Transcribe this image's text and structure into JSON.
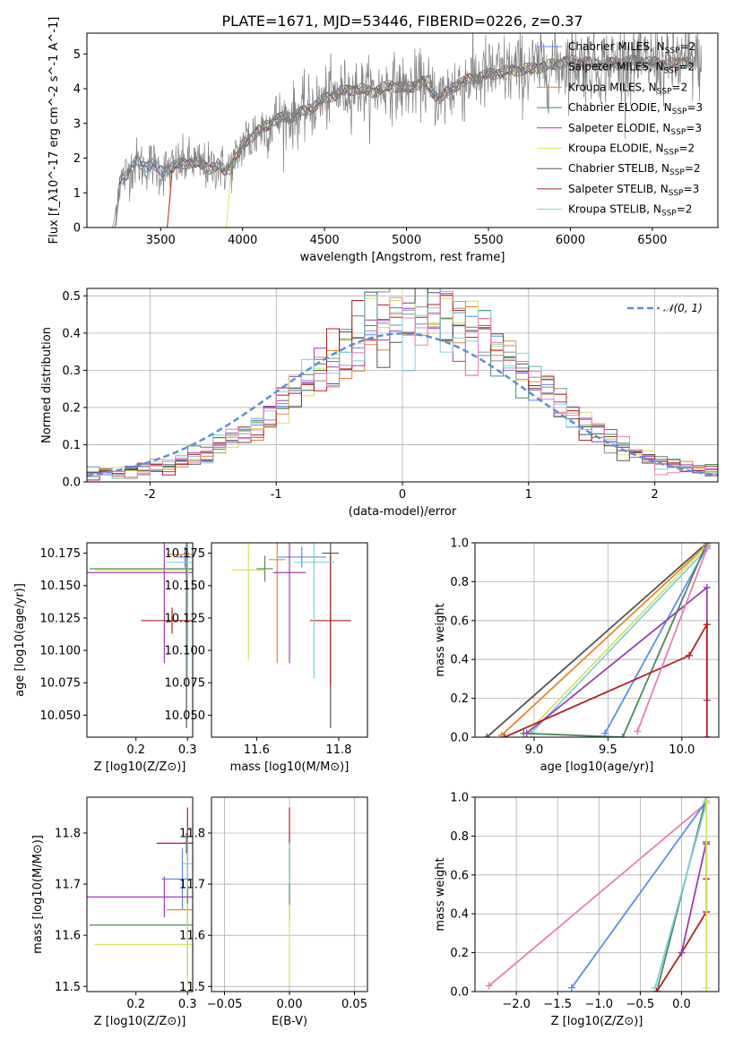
{
  "title": "PLATE=1671, MJD=53446, FIBERID=0226, z=0.37",
  "models": [
    {
      "name": "Chabrier MILES",
      "nssp": "2",
      "color": "#5b8def"
    },
    {
      "name": "Salpeter MILES",
      "nssp": "2",
      "color": "#8b8b8b"
    },
    {
      "name": "Kroupa MILES",
      "nssp": "2",
      "color": "#e8862a"
    },
    {
      "name": "Chabrier ELODIE",
      "nssp": "3",
      "color": "#4c8a5a"
    },
    {
      "name": "Salpeter ELODIE",
      "nssp": "3",
      "color": "#9b3fb5"
    },
    {
      "name": "Kroupa ELODIE",
      "nssp": "2",
      "color": "#d8e060"
    },
    {
      "name": "Chabrier STELIB",
      "nssp": "2",
      "color": "#555555"
    },
    {
      "name": "Salpeter STELIB",
      "nssp": "3",
      "color": "#b22222"
    },
    {
      "name": "Kroupa STELIB",
      "nssp": "2",
      "color": "#80d0d8"
    }
  ],
  "pinkColor": "#e87eb4",
  "chart_data": [
    {
      "id": "spectrum",
      "type": "line",
      "xlabel": "wavelength [Angstrom, rest frame]",
      "ylabel": "Flux [f_λ10^-17 erg cm^-2 s^-1 A^-1]",
      "xlim": [
        3050,
        6900
      ],
      "ylim": [
        0,
        5.6
      ],
      "xticks": [
        3500,
        4000,
        4500,
        5000,
        5500,
        6000,
        6500
      ],
      "yticks": [
        0,
        1,
        2,
        3,
        4,
        5
      ],
      "data_color": "#808080",
      "continuum": [
        [
          3200,
          0.0
        ],
        [
          3250,
          1.3
        ],
        [
          3300,
          1.6
        ],
        [
          3350,
          1.9
        ],
        [
          3400,
          1.75
        ],
        [
          3450,
          1.85
        ],
        [
          3500,
          1.6
        ],
        [
          3550,
          1.7
        ],
        [
          3600,
          1.8
        ],
        [
          3700,
          1.9
        ],
        [
          3800,
          1.7
        ],
        [
          3850,
          1.8
        ],
        [
          3900,
          1.6
        ],
        [
          3950,
          1.9
        ],
        [
          4000,
          2.4
        ],
        [
          4100,
          2.8
        ],
        [
          4200,
          3.1
        ],
        [
          4300,
          3.2
        ],
        [
          4400,
          3.4
        ],
        [
          4500,
          3.7
        ],
        [
          4600,
          3.9
        ],
        [
          4700,
          4.0
        ],
        [
          4800,
          3.9
        ],
        [
          4900,
          4.1
        ],
        [
          5000,
          4.0
        ],
        [
          5100,
          4.2
        ],
        [
          5200,
          3.7
        ],
        [
          5300,
          4.1
        ],
        [
          5400,
          4.3
        ],
        [
          5500,
          4.4
        ],
        [
          5600,
          4.5
        ],
        [
          5800,
          4.6
        ],
        [
          6000,
          4.8
        ],
        [
          6200,
          4.7
        ],
        [
          6400,
          4.8
        ],
        [
          6600,
          4.7
        ],
        [
          6750,
          4.8
        ]
      ]
    },
    {
      "id": "residuals",
      "type": "line",
      "xlabel": "(data-model)/error",
      "ylabel": "Normed distribution",
      "xlim": [
        -2.5,
        2.5
      ],
      "ylim": [
        0,
        0.52
      ],
      "xticks": [
        -2,
        -1,
        0,
        1,
        2
      ],
      "yticks": [
        0.0,
        0.1,
        0.2,
        0.3,
        0.4,
        0.5
      ],
      "legend": "𝒩(0, 1)",
      "legend_loc": "top-right",
      "binwidth": 0.1
    },
    {
      "id": "age_vs_Z",
      "type": "scatter",
      "xlabel": "Z [log10(Z/Z⊙)]",
      "ylabel": "age [log10(age/yr)]",
      "xlim": [
        0.105,
        0.31
      ],
      "ylim": [
        10.033,
        10.183
      ],
      "xticks": [
        0.2,
        0.3
      ],
      "yticks": [
        10.05,
        10.075,
        10.1,
        10.125,
        10.15,
        10.175
      ],
      "points": [
        {
          "m": 0,
          "x": 0.295,
          "xerr": 0.015,
          "y": 10.172,
          "yerr": 0.008
        },
        {
          "m": 2,
          "x": 0.3,
          "xerr": 0.04,
          "y": 10.174,
          "yerr": 0.006
        },
        {
          "m": 3,
          "x": 0.3,
          "xerr": 0.19,
          "y": 10.163,
          "yerr": 0.06
        },
        {
          "m": 4,
          "x": 0.255,
          "xerr": 0.15,
          "y": 10.16,
          "yerr": 0.07
        },
        {
          "m": 5,
          "x": 0.3,
          "xerr": 0.18,
          "y": 10.162,
          "yerr": 0.01
        },
        {
          "m": 6,
          "x": 0.298,
          "xerr": 0.005,
          "y": 10.175,
          "yerr": 0.135
        },
        {
          "m": 7,
          "x": 0.27,
          "xerr": 0.06,
          "y": 10.123,
          "yerr": 0.01
        },
        {
          "m": 8,
          "x": 0.3,
          "xerr": 0.04,
          "y": 10.168,
          "yerr": 0.09
        }
      ]
    },
    {
      "id": "age_vs_mass",
      "type": "scatter",
      "xlabel": "mass [log10(M/M⊙)]",
      "ylabel": "",
      "xlim": [
        11.49,
        11.87
      ],
      "ylim": [
        10.033,
        10.183
      ],
      "xticks": [
        11.6,
        11.8
      ],
      "yticks": [
        10.05,
        10.075,
        10.1,
        10.125,
        10.15,
        10.175
      ],
      "points": [
        {
          "m": 0,
          "x": 11.71,
          "xerr": 0.06,
          "y": 10.172,
          "yerr": 0.008
        },
        {
          "m": 2,
          "x": 11.65,
          "xerr": 0.02,
          "y": 10.17,
          "yerr": 0.08
        },
        {
          "m": 3,
          "x": 11.62,
          "xerr": 0.02,
          "y": 10.163,
          "yerr": 0.01
        },
        {
          "m": 4,
          "x": 11.68,
          "xerr": 0.04,
          "y": 10.16,
          "yerr": 0.07
        },
        {
          "m": 5,
          "x": 11.58,
          "xerr": 0.04,
          "y": 10.162,
          "yerr": 0.07
        },
        {
          "m": 6,
          "x": 11.78,
          "xerr": 0.02,
          "y": 10.175,
          "yerr": 0.135
        },
        {
          "m": 7,
          "x": 11.78,
          "xerr": 0.05,
          "y": 10.123,
          "yerr": 0.05
        },
        {
          "m": 8,
          "x": 11.74,
          "xerr": 0.05,
          "y": 10.168,
          "yerr": 0.09
        }
      ]
    },
    {
      "id": "weight_vs_age",
      "type": "line",
      "xlabel": "age [log10(age/yr)]",
      "ylabel": "mass weight",
      "xlim": [
        8.6,
        10.25
      ],
      "ylim": [
        0,
        1.0
      ],
      "xticks": [
        9.0,
        9.5,
        10.0
      ],
      "yticks": [
        0.0,
        0.2,
        0.4,
        0.6,
        0.8,
        1.0
      ],
      "lines": [
        {
          "m": 6,
          "pts": [
            [
              8.68,
              0.0
            ],
            [
              10.17,
              1.0
            ]
          ]
        },
        {
          "m": 2,
          "pts": [
            [
              8.78,
              0.01
            ],
            [
              10.17,
              0.99
            ]
          ]
        },
        {
          "m": 5,
          "pts": [
            [
              8.95,
              0.02
            ],
            [
              10.16,
              0.98
            ]
          ]
        },
        {
          "m": 8,
          "pts": [
            [
              8.98,
              0.02
            ],
            [
              10.17,
              0.97
            ]
          ]
        },
        {
          "m": 0,
          "pts": [
            [
              9.48,
              0.02
            ],
            [
              10.17,
              0.98
            ]
          ]
        },
        {
          "m": 3,
          "pts": [
            [
              8.93,
              0.02
            ],
            [
              9.6,
              0.0
            ],
            [
              10.17,
              1.0
            ]
          ]
        },
        {
          "m": 4,
          "pts": [
            [
              8.95,
              0.02
            ],
            [
              10.17,
              0.77
            ],
            [
              10.17,
              0.19
            ]
          ]
        },
        {
          "m": 7,
          "pts": [
            [
              8.8,
              0.0
            ],
            [
              10.05,
              0.42
            ],
            [
              10.17,
              0.58
            ],
            [
              10.17,
              0.0
            ]
          ]
        },
        {
          "m": 9,
          "pts": [
            [
              9.7,
              0.03
            ],
            [
              10.17,
              0.97
            ]
          ]
        }
      ]
    },
    {
      "id": "mass_vs_Z",
      "type": "scatter",
      "xlabel": "Z [log10(Z/Z⊙)]",
      "ylabel": "mass [log10(M/M⊙)]",
      "xlim": [
        0.105,
        0.31
      ],
      "ylim": [
        11.49,
        11.87
      ],
      "xticks": [
        0.2,
        0.3
      ],
      "yticks": [
        11.5,
        11.6,
        11.7,
        11.8
      ],
      "points": [
        {
          "m": 0,
          "x": 0.29,
          "xerr": 0.04,
          "y": 11.71,
          "yerr": 0.06
        },
        {
          "m": 2,
          "x": 0.3,
          "xerr": 0.04,
          "y": 11.65,
          "yerr": 0.02
        },
        {
          "m": 3,
          "x": 0.3,
          "xerr": 0.19,
          "y": 11.62,
          "yerr": 0.1
        },
        {
          "m": 4,
          "x": 0.255,
          "xerr": 0.15,
          "y": 11.675,
          "yerr": 0.04
        },
        {
          "m": 5,
          "x": 0.3,
          "xerr": 0.18,
          "y": 11.582,
          "yerr": 0.08
        },
        {
          "m": 6,
          "x": 0.298,
          "xerr": 0.012,
          "y": 11.78,
          "yerr": 0.02
        },
        {
          "m": 7,
          "x": 0.3,
          "xerr": 0.06,
          "y": 11.78,
          "yerr": 0.07
        },
        {
          "m": 8,
          "x": 0.3,
          "xerr": 0.01,
          "y": 11.74,
          "yerr": 0.05
        }
      ]
    },
    {
      "id": "mass_vs_ebv",
      "type": "scatter",
      "xlabel": "E(B-V)",
      "ylabel": "",
      "xlim": [
        -0.06,
        0.06
      ],
      "ylim": [
        11.49,
        11.87
      ],
      "xticks": [
        -0.05,
        0.0,
        0.05
      ],
      "xticklabels": [
        "−0.05",
        "0.00",
        "0.05"
      ],
      "yticks": [
        11.5,
        11.6,
        11.7,
        11.8
      ],
      "points": [
        {
          "m": 7,
          "x": 0.0,
          "xerr": 0.0,
          "y": 11.78,
          "yerr": 0.07
        },
        {
          "m": 3,
          "x": 0.0,
          "xerr": 0.0,
          "y": 11.7,
          "yerr": 0.07
        },
        {
          "m": 8,
          "x": 0.0,
          "xerr": 0.0,
          "y": 11.74,
          "yerr": 0.04
        },
        {
          "m": 5,
          "x": 0.0,
          "xerr": 0.0,
          "y": 11.58,
          "yerr": 0.08
        }
      ]
    },
    {
      "id": "weight_vs_Z",
      "type": "line",
      "xlabel": "Z [log10(Z/Z⊙)]",
      "ylabel": "mass weight",
      "xlim": [
        -2.5,
        0.45
      ],
      "ylim": [
        0,
        1.0
      ],
      "xticks": [
        -2.0,
        -1.5,
        -1.0,
        -0.5,
        0.0
      ],
      "xticklabels": [
        "−2.0",
        "−1.5",
        "−1.0",
        "−0.5",
        "0.0"
      ],
      "yticks": [
        0.0,
        0.2,
        0.4,
        0.6,
        0.8,
        1.0
      ],
      "lines": [
        {
          "m": 9,
          "pts": [
            [
              -2.33,
              0.03
            ],
            [
              0.3,
              0.97
            ]
          ]
        },
        {
          "m": 0,
          "pts": [
            [
              -1.33,
              0.02
            ],
            [
              0.3,
              0.98
            ]
          ]
        },
        {
          "m": 3,
          "pts": [
            [
              -0.3,
              0.0
            ],
            [
              0.3,
              1.0
            ]
          ]
        },
        {
          "m": 8,
          "pts": [
            [
              -0.32,
              0.02
            ],
            [
              0.3,
              0.97
            ]
          ]
        },
        {
          "m": 7,
          "pts": [
            [
              -0.3,
              0.0
            ],
            [
              0.0,
              0.2
            ],
            [
              0.3,
              0.41
            ],
            [
              0.3,
              0.58
            ],
            [
              0.3,
              0.76
            ]
          ]
        },
        {
          "m": 4,
          "pts": [
            [
              0.0,
              0.2
            ],
            [
              0.3,
              0.77
            ]
          ]
        },
        {
          "m": 5,
          "pts": [
            [
              0.3,
              0.02
            ],
            [
              0.3,
              0.98
            ]
          ]
        }
      ]
    }
  ]
}
